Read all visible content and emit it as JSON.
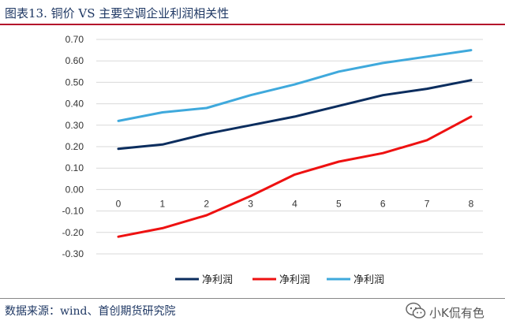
{
  "header": {
    "title": "图表13.   铜价 VS 主要空调企业利润相关性"
  },
  "footer": {
    "source": "数据来源：wind、首创期货研究院",
    "watermark": "小K侃有色",
    "watermark_icon": "wechat-icon"
  },
  "chart_data": {
    "type": "line",
    "title": "",
    "xlabel": "",
    "ylabel": "",
    "x": [
      0,
      1,
      2,
      3,
      4,
      5,
      6,
      7,
      8
    ],
    "ylim": [
      -0.3,
      0.7
    ],
    "y_ticks": [
      "0.70",
      "0.60",
      "0.50",
      "0.40",
      "0.30",
      "0.20",
      "0.10",
      "0.00",
      "-0.10",
      "-0.20",
      "-0.30"
    ],
    "x_ticks": [
      "0",
      "1",
      "2",
      "3",
      "4",
      "5",
      "6",
      "7",
      "8"
    ],
    "grid": true,
    "legend_position": "bottom",
    "series": [
      {
        "name": "净利润",
        "color": "#0b2d5e",
        "values": [
          0.19,
          0.21,
          0.26,
          0.3,
          0.34,
          0.39,
          0.44,
          0.47,
          0.51
        ]
      },
      {
        "name": "净利润",
        "color": "#ee1111",
        "values": [
          -0.22,
          -0.18,
          -0.12,
          -0.03,
          0.07,
          0.13,
          0.17,
          0.23,
          0.34
        ]
      },
      {
        "name": "净利润",
        "color": "#3fa9dc",
        "values": [
          0.32,
          0.36,
          0.38,
          0.44,
          0.49,
          0.55,
          0.59,
          0.62,
          0.65
        ]
      }
    ]
  }
}
